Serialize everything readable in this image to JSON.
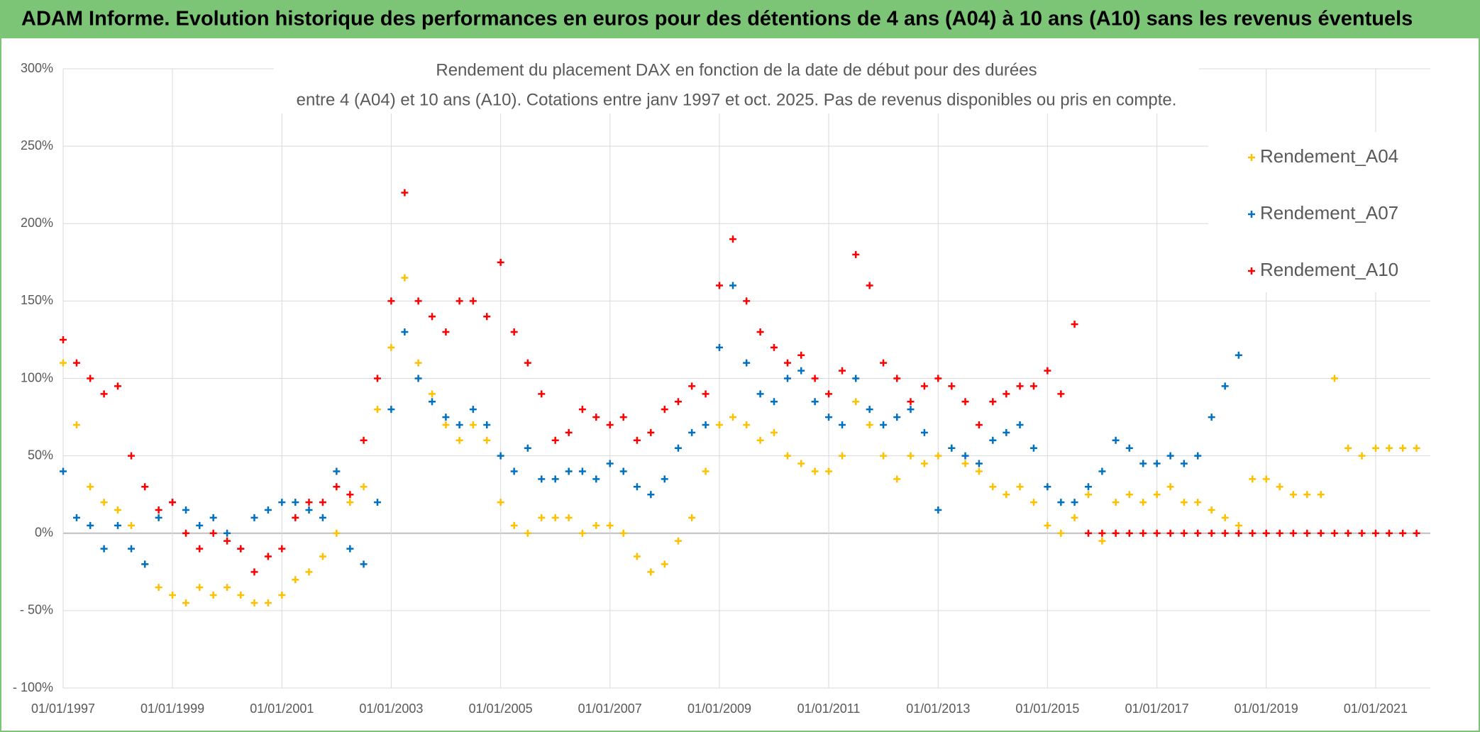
{
  "header": {
    "title": "ADAM Informe. Evolution historique des performances en euros pour des détentions de 4 ans (A04) à 10 ans (A10) sans les revenus éventuels"
  },
  "chart_data": {
    "type": "scatter",
    "title": [
      "Rendement du placement DAX en fonction de la date de début pour des durées",
      "entre 4 (A04) et 10 ans (A10). Cotations entre janv 1997 et oct. 2025. Pas de revenus disponibles ou pris en compte."
    ],
    "x": [
      "01/01/1997",
      "01/04/1997",
      "01/07/1997",
      "01/10/1997",
      "01/01/1998",
      "01/04/1998",
      "01/07/1998",
      "01/10/1998",
      "01/01/1999",
      "01/04/1999",
      "01/07/1999",
      "01/10/1999",
      "01/01/2000",
      "01/04/2000",
      "01/07/2000",
      "01/10/2000",
      "01/01/2001",
      "01/04/2001",
      "01/07/2001",
      "01/10/2001",
      "01/01/2002",
      "01/04/2002",
      "01/07/2002",
      "01/10/2002",
      "01/01/2003",
      "01/04/2003",
      "01/07/2003",
      "01/10/2003",
      "01/01/2004",
      "01/04/2004",
      "01/07/2004",
      "01/10/2004",
      "01/01/2005",
      "01/04/2005",
      "01/07/2005",
      "01/10/2005",
      "01/01/2006",
      "01/04/2006",
      "01/07/2006",
      "01/10/2006",
      "01/01/2007",
      "01/04/2007",
      "01/07/2007",
      "01/10/2007",
      "01/01/2008",
      "01/04/2008",
      "01/07/2008",
      "01/10/2008",
      "01/01/2009",
      "01/04/2009",
      "01/07/2009",
      "01/10/2009",
      "01/01/2010",
      "01/04/2010",
      "01/07/2010",
      "01/10/2010",
      "01/01/2011",
      "01/04/2011",
      "01/07/2011",
      "01/10/2011",
      "01/01/2012",
      "01/04/2012",
      "01/07/2012",
      "01/10/2012",
      "01/01/2013",
      "01/04/2013",
      "01/07/2013",
      "01/10/2013",
      "01/01/2014",
      "01/04/2014",
      "01/07/2014",
      "01/10/2014",
      "01/01/2015",
      "01/04/2015",
      "01/07/2015",
      "01/10/2015",
      "01/01/2016",
      "01/04/2016",
      "01/07/2016",
      "01/10/2016",
      "01/01/2017",
      "01/04/2017",
      "01/07/2017",
      "01/10/2017",
      "01/01/2018",
      "01/04/2018",
      "01/07/2018",
      "01/10/2018",
      "01/01/2019",
      "01/04/2019",
      "01/07/2019",
      "01/10/2019",
      "01/01/2020",
      "01/04/2020",
      "01/07/2020",
      "01/10/2020",
      "01/01/2021",
      "01/04/2021",
      "01/07/2021",
      "01/10/2021"
    ],
    "series": [
      {
        "name": "Rendement_A04",
        "color": "#ffc000",
        "values": [
          110,
          70,
          30,
          20,
          15,
          5,
          -20,
          -35,
          -40,
          -45,
          -35,
          -40,
          -35,
          -40,
          -45,
          -45,
          -40,
          -30,
          -25,
          -15,
          0,
          20,
          30,
          80,
          120,
          165,
          110,
          90,
          70,
          60,
          70,
          60,
          20,
          5,
          0,
          10,
          10,
          10,
          0,
          5,
          5,
          0,
          -15,
          -25,
          -20,
          -5,
          10,
          40,
          70,
          75,
          70,
          60,
          65,
          50,
          45,
          40,
          40,
          50,
          85,
          70,
          50,
          35,
          50,
          45,
          50,
          55,
          45,
          40,
          30,
          25,
          30,
          20,
          5,
          0,
          10,
          25,
          -5,
          20,
          25,
          20,
          25,
          30,
          20,
          20,
          15,
          10,
          5,
          35,
          35,
          30,
          25,
          25,
          25,
          100,
          55,
          50,
          55,
          55,
          55,
          55
        ]
      },
      {
        "name": "Rendement_A07",
        "color": "#0070c0",
        "values": [
          40,
          10,
          5,
          -10,
          5,
          -10,
          -20,
          10,
          20,
          15,
          5,
          10,
          0,
          -10,
          10,
          15,
          20,
          20,
          15,
          10,
          40,
          -10,
          -20,
          20,
          80,
          130,
          100,
          85,
          75,
          70,
          80,
          70,
          50,
          40,
          55,
          35,
          35,
          40,
          40,
          35,
          45,
          40,
          30,
          25,
          35,
          55,
          65,
          70,
          120,
          160,
          110,
          90,
          85,
          100,
          105,
          85,
          75,
          70,
          100,
          80,
          70,
          75,
          80,
          65,
          15,
          55,
          50,
          45,
          60,
          65,
          70,
          55,
          30,
          20,
          20,
          30,
          40,
          60,
          55,
          45,
          45,
          50,
          45,
          50,
          75,
          95,
          115,
          null,
          null,
          null,
          null,
          null,
          null,
          null,
          null,
          null,
          null,
          null,
          null,
          null
        ]
      },
      {
        "name": "Rendement_A10",
        "color": "#ff0000",
        "values": [
          125,
          110,
          100,
          90,
          95,
          50,
          30,
          15,
          20,
          0,
          -10,
          0,
          -5,
          -10,
          -25,
          -15,
          -10,
          10,
          20,
          20,
          30,
          25,
          60,
          100,
          150,
          220,
          150,
          140,
          130,
          150,
          150,
          140,
          175,
          130,
          110,
          90,
          60,
          65,
          80,
          75,
          70,
          75,
          60,
          65,
          80,
          85,
          95,
          90,
          160,
          190,
          150,
          130,
          120,
          110,
          115,
          100,
          90,
          105,
          180,
          160,
          110,
          100,
          85,
          95,
          100,
          95,
          85,
          70,
          85,
          90,
          95,
          95,
          105,
          90,
          135,
          0,
          0,
          0,
          0,
          0,
          0,
          0,
          0,
          0,
          0,
          0,
          0,
          0,
          0,
          0,
          0,
          0,
          0,
          0,
          0,
          0,
          0,
          0,
          0,
          0
        ]
      }
    ],
    "xlim": [
      "01/01/1997",
      "01/01/2022"
    ],
    "xticks": [
      "01/01/1997",
      "01/01/1999",
      "01/01/2001",
      "01/01/2003",
      "01/01/2005",
      "01/01/2007",
      "01/01/2009",
      "01/01/2011",
      "01/01/2013",
      "01/01/2015",
      "01/01/2017",
      "01/01/2019",
      "01/01/2021"
    ],
    "ylim": [
      -100,
      300
    ],
    "yticks": [
      {
        "value": -100,
        "label": "- 100%"
      },
      {
        "value": -50,
        "label": "- 50%"
      },
      {
        "value": 0,
        "label": "0%"
      },
      {
        "value": 50,
        "label": "50%"
      },
      {
        "value": 100,
        "label": "100%"
      },
      {
        "value": 150,
        "label": "150%"
      },
      {
        "value": 200,
        "label": "200%"
      },
      {
        "value": 250,
        "label": "250%"
      },
      {
        "value": 300,
        "label": "300%"
      }
    ],
    "grid": true,
    "legend": "top right"
  }
}
